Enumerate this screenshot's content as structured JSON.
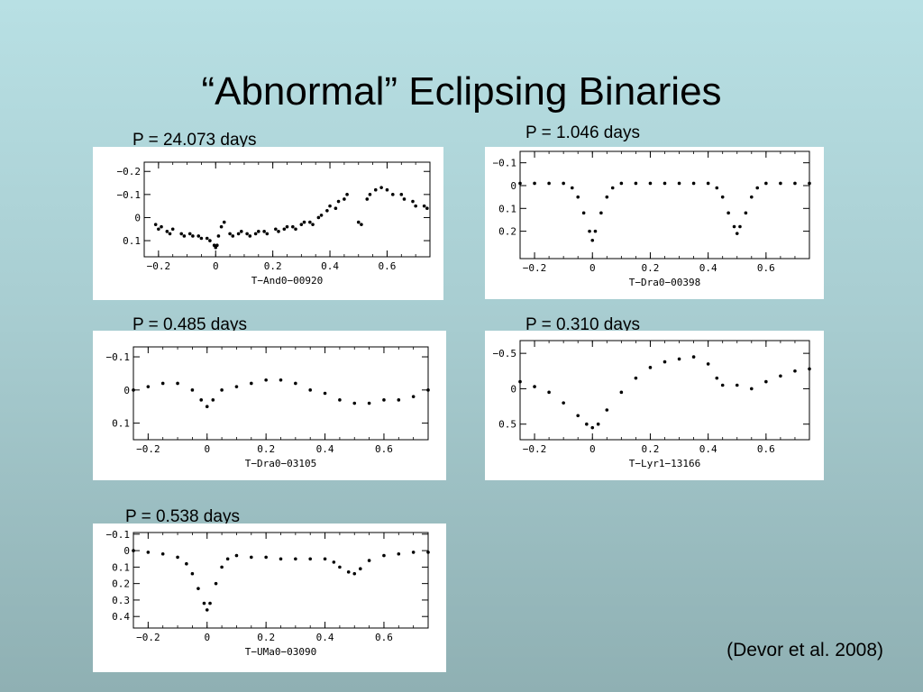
{
  "slide": {
    "title": "“Abnormal” Eclipsing Binaries",
    "citation": "(Devor et al. 2008)"
  },
  "chart_data": [
    {
      "type": "scatter",
      "period_label": "P = 24.073 days",
      "xlabel": "T-And0-00920",
      "ylabel": "",
      "xlim": [
        -0.25,
        0.75
      ],
      "ylim": [
        -0.24,
        0.17
      ],
      "y_inverted": true,
      "x_ticks": [
        -0.2,
        0,
        0.2,
        0.4,
        0.6
      ],
      "x_tick_labels": [
        "-0.2",
        "0",
        "0.2",
        "0.4",
        "0.6"
      ],
      "y_ticks": [
        -0.2,
        -0.1,
        0,
        0.1
      ],
      "y_tick_labels": [
        "-0.2",
        "-0.1",
        "0",
        "0.1"
      ],
      "series": [
        {
          "x": [
            -0.21,
            -0.2,
            -0.19,
            -0.17,
            -0.16,
            -0.15,
            -0.12,
            -0.11,
            -0.09,
            -0.08,
            -0.06,
            -0.05,
            -0.03,
            -0.02,
            -0.005,
            0.0,
            0.005,
            0.01,
            0.02,
            0.03,
            0.05,
            0.06,
            0.08,
            0.09,
            0.11,
            0.12,
            0.14,
            0.15,
            0.17,
            0.18,
            0.21,
            0.22,
            0.24,
            0.25,
            0.27,
            0.28,
            0.3,
            0.31,
            0.33,
            0.34,
            0.36,
            0.37,
            0.39,
            0.4,
            0.42,
            0.43,
            0.45,
            0.46,
            0.5,
            0.51,
            0.53,
            0.54,
            0.56,
            0.58,
            0.6,
            0.62,
            0.65,
            0.66,
            0.69,
            0.7,
            0.73,
            0.74
          ],
          "y": [
            0.03,
            0.05,
            0.04,
            0.06,
            0.07,
            0.05,
            0.07,
            0.08,
            0.07,
            0.08,
            0.08,
            0.09,
            0.09,
            0.1,
            0.12,
            0.13,
            0.12,
            0.08,
            0.04,
            0.02,
            0.07,
            0.08,
            0.07,
            0.06,
            0.07,
            0.08,
            0.07,
            0.06,
            0.06,
            0.07,
            0.05,
            0.06,
            0.05,
            0.04,
            0.04,
            0.05,
            0.03,
            0.02,
            0.02,
            0.03,
            0.0,
            -0.01,
            -0.03,
            -0.05,
            -0.04,
            -0.07,
            -0.08,
            -0.1,
            0.02,
            0.03,
            -0.08,
            -0.1,
            -0.12,
            -0.13,
            -0.12,
            -0.1,
            -0.1,
            -0.08,
            -0.07,
            -0.05,
            -0.05,
            -0.04
          ]
        }
      ]
    },
    {
      "type": "scatter",
      "period_label": "P = 1.046 days",
      "xlabel": "T-Dra0-00398",
      "ylabel": "",
      "xlim": [
        -0.25,
        0.75
      ],
      "ylim": [
        -0.15,
        0.32
      ],
      "y_inverted": true,
      "x_ticks": [
        -0.2,
        0,
        0.2,
        0.4,
        0.6
      ],
      "x_tick_labels": [
        "-0.2",
        "0",
        "0.2",
        "0.4",
        "0.6"
      ],
      "y_ticks": [
        -0.1,
        0,
        0.1,
        0.2
      ],
      "y_tick_labels": [
        "-0.1",
        "0",
        "0.1",
        "0.2"
      ],
      "series": [
        {
          "x": [
            -0.25,
            -0.2,
            -0.15,
            -0.1,
            -0.07,
            -0.05,
            -0.03,
            -0.01,
            0.0,
            0.01,
            0.03,
            0.05,
            0.07,
            0.1,
            0.15,
            0.2,
            0.25,
            0.3,
            0.35,
            0.4,
            0.43,
            0.45,
            0.47,
            0.49,
            0.5,
            0.51,
            0.53,
            0.55,
            0.57,
            0.6,
            0.65,
            0.7,
            0.75
          ],
          "y": [
            -0.01,
            -0.01,
            -0.01,
            -0.01,
            0.01,
            0.05,
            0.12,
            0.2,
            0.24,
            0.2,
            0.12,
            0.05,
            0.01,
            -0.01,
            -0.01,
            -0.01,
            -0.01,
            -0.01,
            -0.01,
            -0.01,
            0.01,
            0.05,
            0.12,
            0.18,
            0.21,
            0.18,
            0.12,
            0.05,
            0.01,
            -0.01,
            -0.01,
            -0.01,
            -0.01
          ]
        }
      ]
    },
    {
      "type": "scatter",
      "period_label": "P = 0.485 days",
      "xlabel": "T-Dra0-03105",
      "ylabel": "",
      "xlim": [
        -0.25,
        0.75
      ],
      "ylim": [
        -0.13,
        0.15
      ],
      "y_inverted": true,
      "x_ticks": [
        -0.2,
        0,
        0.2,
        0.4,
        0.6
      ],
      "x_tick_labels": [
        "-0.2",
        "0",
        "0.2",
        "0.4",
        "0.6"
      ],
      "y_ticks": [
        -0.1,
        0,
        0.1
      ],
      "y_tick_labels": [
        "-0.1",
        "0",
        "0.1"
      ],
      "series": [
        {
          "x": [
            -0.25,
            -0.2,
            -0.15,
            -0.1,
            -0.05,
            -0.02,
            0.0,
            0.02,
            0.05,
            0.1,
            0.15,
            0.2,
            0.25,
            0.3,
            0.35,
            0.4,
            0.45,
            0.5,
            0.55,
            0.6,
            0.65,
            0.7,
            0.75
          ],
          "y": [
            0.0,
            -0.01,
            -0.02,
            -0.02,
            0.0,
            0.03,
            0.05,
            0.03,
            0.0,
            -0.01,
            -0.02,
            -0.03,
            -0.03,
            -0.02,
            0.0,
            0.01,
            0.03,
            0.04,
            0.04,
            0.03,
            0.03,
            0.02,
            0.0
          ]
        }
      ]
    },
    {
      "type": "scatter",
      "period_label": "P = 0.310 days",
      "xlabel": "T-Lyr1-13166",
      "ylabel": "",
      "xlim": [
        -0.25,
        0.75
      ],
      "ylim": [
        -0.68,
        0.72
      ],
      "y_inverted": true,
      "x_ticks": [
        -0.2,
        0,
        0.2,
        0.4,
        0.6
      ],
      "x_tick_labels": [
        "-0.2",
        "0",
        "0.2",
        "0.4",
        "0.6"
      ],
      "y_ticks": [
        -0.5,
        0,
        0.5
      ],
      "y_tick_labels": [
        "-0.5",
        "0",
        "0.5"
      ],
      "series": [
        {
          "x": [
            -0.25,
            -0.2,
            -0.15,
            -0.1,
            -0.05,
            -0.02,
            0.0,
            0.02,
            0.05,
            0.1,
            0.15,
            0.2,
            0.25,
            0.3,
            0.35,
            0.4,
            0.43,
            0.45,
            0.5,
            0.55,
            0.6,
            0.65,
            0.7,
            0.75
          ],
          "y": [
            -0.1,
            -0.03,
            0.05,
            0.2,
            0.38,
            0.5,
            0.55,
            0.5,
            0.3,
            0.05,
            -0.15,
            -0.3,
            -0.38,
            -0.42,
            -0.45,
            -0.35,
            -0.15,
            -0.05,
            -0.05,
            0.0,
            -0.1,
            -0.18,
            -0.25,
            -0.28
          ]
        }
      ]
    },
    {
      "type": "scatter",
      "period_label": "P = 0.538 days",
      "xlabel": "T-UMa0-03090",
      "ylabel": "",
      "xlim": [
        -0.25,
        0.75
      ],
      "ylim": [
        -0.11,
        0.47
      ],
      "y_inverted": true,
      "x_ticks": [
        -0.2,
        0,
        0.2,
        0.4,
        0.6
      ],
      "x_tick_labels": [
        "-0.2",
        "0",
        "0.2",
        "0.4",
        "0.6"
      ],
      "y_ticks": [
        -0.1,
        0,
        0.1,
        0.2,
        0.3,
        0.4
      ],
      "y_tick_labels": [
        "-0.1",
        "0",
        "0.1",
        "0.2",
        "0.3",
        "0.4"
      ],
      "series": [
        {
          "x": [
            -0.25,
            -0.2,
            -0.15,
            -0.1,
            -0.07,
            -0.05,
            -0.03,
            -0.01,
            0.0,
            0.01,
            0.03,
            0.05,
            0.07,
            0.1,
            0.15,
            0.2,
            0.25,
            0.3,
            0.35,
            0.4,
            0.43,
            0.45,
            0.48,
            0.5,
            0.52,
            0.55,
            0.6,
            0.65,
            0.7,
            0.75
          ],
          "y": [
            0.0,
            0.01,
            0.02,
            0.04,
            0.08,
            0.14,
            0.23,
            0.32,
            0.36,
            0.32,
            0.2,
            0.1,
            0.05,
            0.03,
            0.04,
            0.04,
            0.05,
            0.05,
            0.05,
            0.05,
            0.07,
            0.1,
            0.13,
            0.14,
            0.11,
            0.06,
            0.03,
            0.02,
            0.01,
            0.01
          ]
        }
      ]
    }
  ]
}
